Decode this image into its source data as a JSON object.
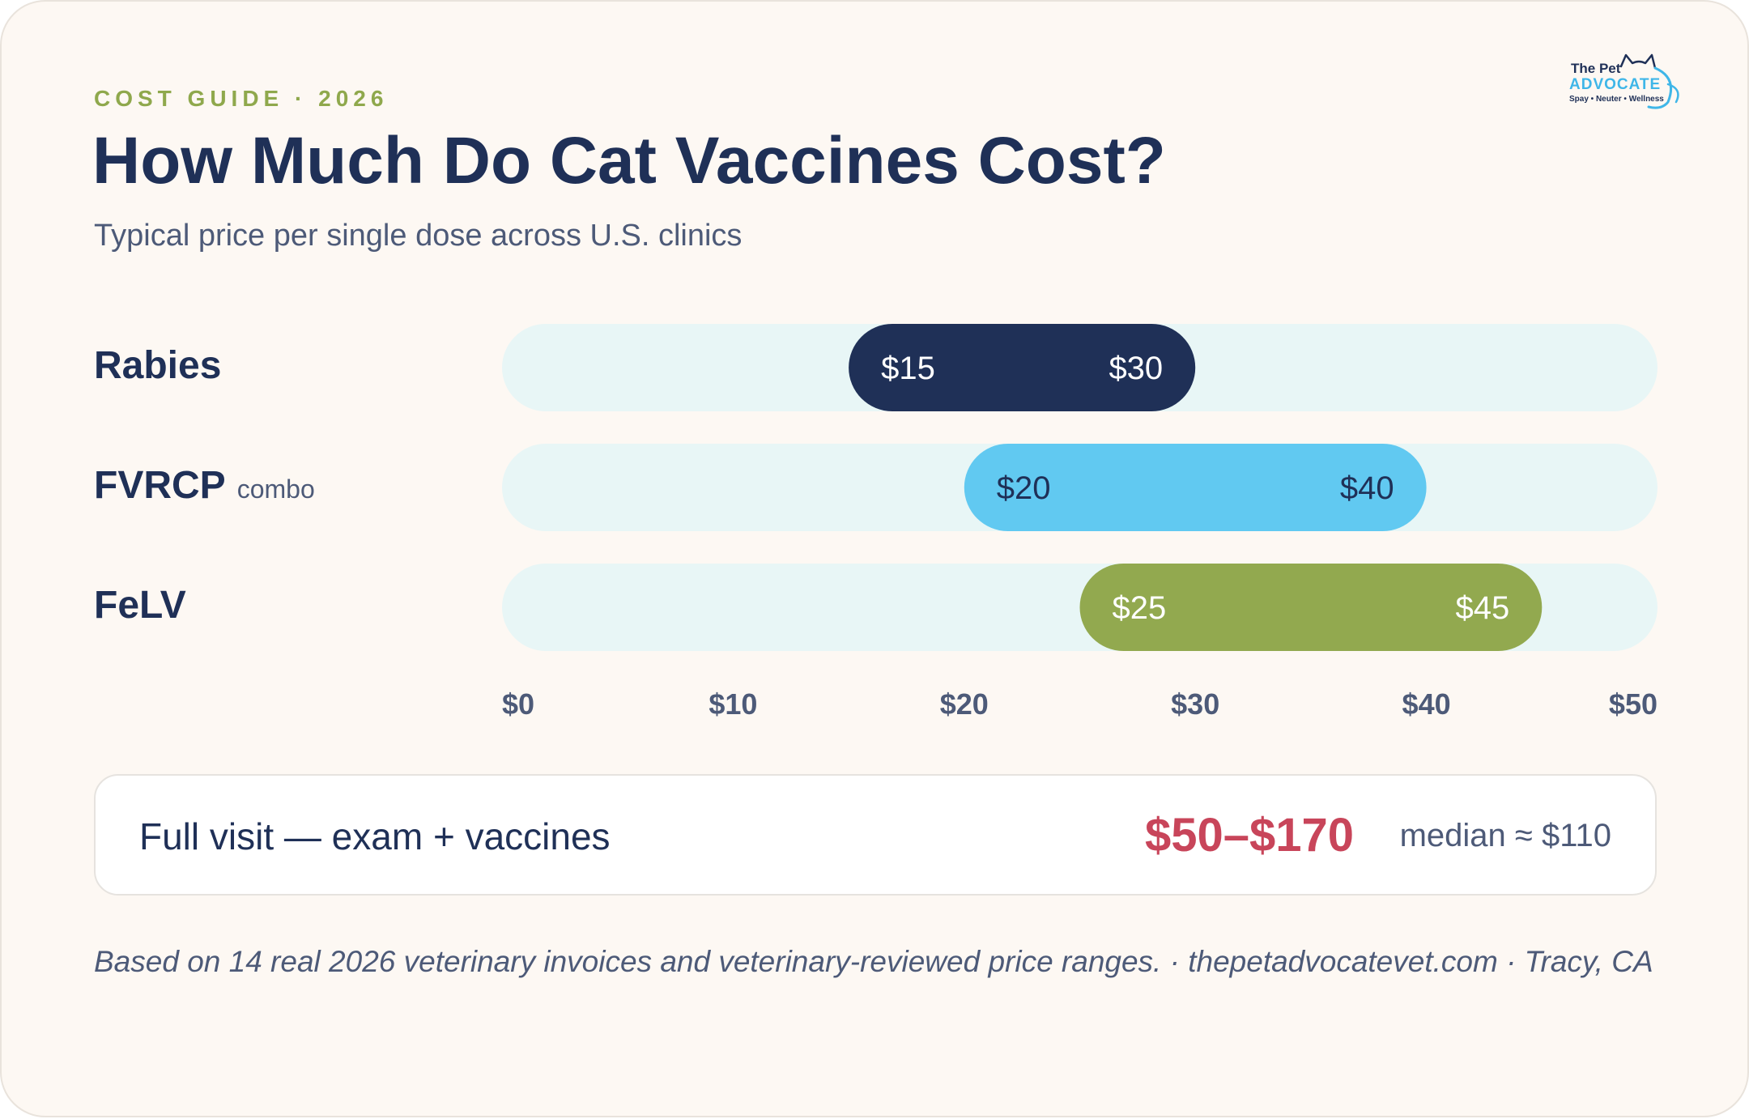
{
  "header": {
    "eyebrow": "COST GUIDE · 2026",
    "title": "How Much Do Cat Vaccines Cost?",
    "subtitle": "Typical price per single dose across U.S. clinics"
  },
  "logo": {
    "line1": "The Pet",
    "line2": "ADVOCATE",
    "line3": "Spay • Neuter • Wellness",
    "icon": "cat-outline-icon"
  },
  "colors": {
    "navy": "#1f3057",
    "sky": "#61c9f1",
    "olive": "#92a94f",
    "track": "#e8f6f6",
    "accent_red": "#c8455a",
    "eyebrow": "#8fa84c"
  },
  "chart_data": {
    "type": "range-bar",
    "title": "How Much Do Cat Vaccines Cost?",
    "subtitle": "Typical price per single dose across U.S. clinics",
    "xlim": [
      0,
      50
    ],
    "x_ticks": [
      0,
      10,
      20,
      30,
      40,
      50
    ],
    "x_tick_labels": [
      "$0",
      "$10",
      "$20",
      "$30",
      "$40",
      "$50"
    ],
    "series": [
      {
        "category": "Rabies",
        "note": "",
        "low": 15,
        "high": 30,
        "low_label": "$15",
        "high_label": "$30",
        "color": "#1f3057",
        "text_color": "#ffffff"
      },
      {
        "category": "FVRCP",
        "note": "combo",
        "low": 20,
        "high": 40,
        "low_label": "$20",
        "high_label": "$40",
        "color": "#61c9f1",
        "text_color": "#1f3057"
      },
      {
        "category": "FeLV",
        "note": "",
        "low": 25,
        "high": 45,
        "low_label": "$25",
        "high_label": "$45",
        "color": "#92a94f",
        "text_color": "#ffffff"
      }
    ]
  },
  "summary": {
    "label": "Full visit — exam + vaccines",
    "range": "$50–$170",
    "median": "median ≈ $110"
  },
  "footnote": "Based on 14 real 2026 veterinary invoices and veterinary-reviewed price ranges. · thepetadvocatevet.com · Tracy, CA"
}
